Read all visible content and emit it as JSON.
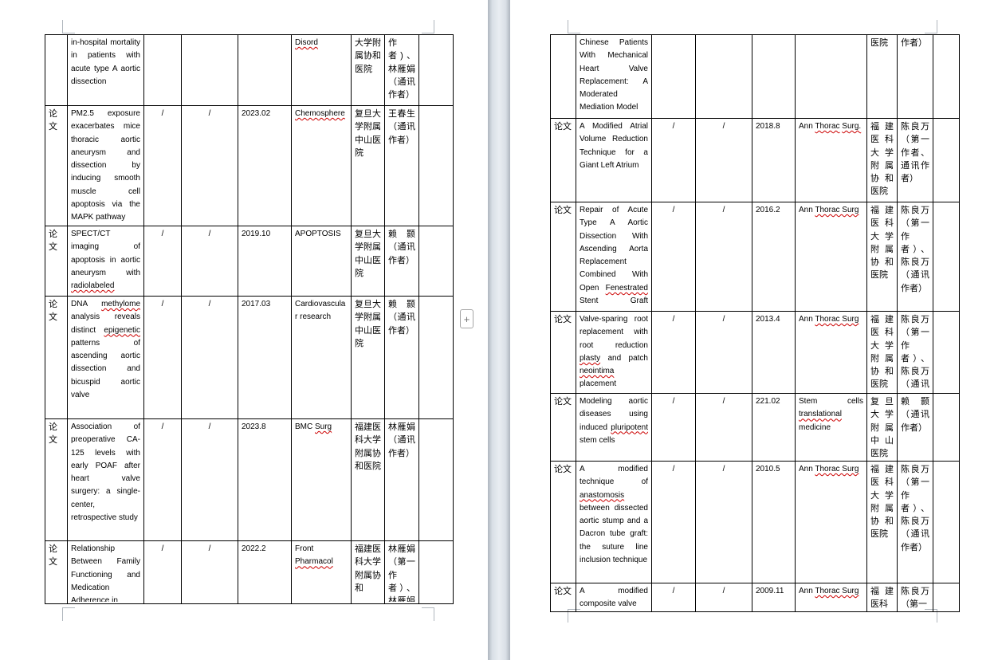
{
  "document": {
    "pages": [
      {
        "name": "left-page",
        "rows": [
          {
            "type": "",
            "title": "in-hospital mortality in patients with acute type A aortic dissection",
            "s1": "",
            "s2": "",
            "date": "",
            "journal": "⟦Disord⟧",
            "inst": "大学附属协和医院",
            "auth": "作者)、林雁娟（通讯作者）"
          },
          {
            "type": "论文",
            "title": "PM2.5 exposure exacerbates mice thoracic aortic aneurysm and dissection by inducing smooth muscle cell apoptosis via the MAPK pathway",
            "s1": "/",
            "s2": "/",
            "date": "2023.02",
            "journal": "⟦Chemosphere⟧",
            "inst": "复旦大学附属中山医院",
            "auth": "王春生（通讯作者）"
          },
          {
            "type": "论文",
            "title": "SPECT/CT imaging of apoptosis in aortic aneurysm with ⟦radiolabeled⟧ ⟦duramycin.⟧",
            "s1": "/",
            "s2": "/",
            "date": "2019.10",
            "journal": "APOPTOSIS",
            "inst": "复旦大学附属中山医院",
            "auth": "赖颢（通讯作者）"
          },
          {
            "type": "论文",
            "title": "DNA ⟦methylome⟧ analysis reveals distinct ⟦epigenetic⟧ patterns of ascending aortic dissection and bicuspid aortic valve",
            "s1": "/",
            "s2": "/",
            "date": "2017.03",
            "journal": "Cardiovascular research",
            "inst": "复旦大学附属中山医院",
            "auth": "赖颢（通讯作者）"
          },
          {
            "type": "论文",
            "title": "Association of preoperative CA-125 levels with early POAF after heart valve surgery: a single-center, retrospective study",
            "s1": "/",
            "s2": "/",
            "date": "2023.8",
            "journal": "BMC ⟦Surg⟧",
            "inst": "福建医科大学附属协和医院",
            "auth": "林雁娟（通讯作者）"
          },
          {
            "type": "论文",
            "title": "Relationship Between Family Functioning and Medication Adherence in",
            "s1": "/",
            "s2": "/",
            "date": "2022.2",
            "journal": "Front ⟦Pharmacol⟧",
            "inst": "福建医科大学附属协和",
            "auth": "林雁娟（第一作者）、林雁娟（通讯"
          }
        ]
      },
      {
        "name": "right-page",
        "rows": [
          {
            "type": "",
            "title": "Chinese Patients With Mechanical Heart Valve Replacement: A Moderated Mediation Model",
            "s1": "",
            "s2": "",
            "date": "",
            "journal": "",
            "inst": "医院",
            "auth": "作者）"
          },
          {
            "type": "论文",
            "title": "A Modified Atrial Volume Reduction Technique for a Giant Left Atrium",
            "s1": "/",
            "s2": "/",
            "date": "2018.8",
            "journal": "Ann ⟦Thorac⟧ ⟦Surg.⟧",
            "inst": "福建医科大学附属协和医院",
            "auth": "陈良万（第一作者、通讯作者）"
          },
          {
            "type": "论文",
            "title": "Repair of Acute Type A Aortic Dissection With Ascending Aorta Replacement Combined With Open ⟦Fenestrated⟧ Stent Graft Placement",
            "s1": "/",
            "s2": "/",
            "date": "2016.2",
            "journal": "Ann ⟦Thorac Surg⟧",
            "inst": "福建医科大学附属协和医院",
            "auth": "陈良万（第一作者）、陈良万（通讯作者）"
          },
          {
            "type": "论文",
            "title": "Valve-sparing root replacement with root reduction ⟦plasty⟧ and patch ⟦neointima⟧ placement",
            "s1": "/",
            "s2": "/",
            "date": "2013.4",
            "journal": "Ann ⟦Thorac Surg⟧",
            "inst": "福建医科大学附属协和医院",
            "auth": "陈良万（第一作者）、陈良万（通讯作者）"
          },
          {
            "type": "论文",
            "title": "Modeling aortic diseases using induced ⟦pluripotent⟧ stem cells",
            "s1": "/",
            "s2": "/",
            "date": "221.02",
            "journal": "Stem cells ⟦translational⟧ medicine",
            "inst": "复旦大学附属中山医院",
            "auth": "赖颢（通讯作者）"
          },
          {
            "type": "论文",
            "title": "A modified technique of ⟦anastomosis⟧ between dissected aortic stump and a Dacron tube graft: the suture line inclusion technique",
            "s1": "/",
            "s2": "/",
            "date": "2010.5",
            "journal": "Ann ⟦Thorac Surg⟧",
            "inst": "福建医科大学附属协和医院",
            "auth": "陈良万（第一作者）、陈良万（通讯作者）"
          },
          {
            "type": "论文",
            "title": "A modified composite valve",
            "s1": "/",
            "s2": "/",
            "date": "2009.11",
            "journal": "Ann ⟦Thorac Surg⟧",
            "inst": "福建医科",
            "auth": "陈良万（第一"
          }
        ]
      }
    ]
  },
  "controls": {
    "plus_button": "+"
  }
}
